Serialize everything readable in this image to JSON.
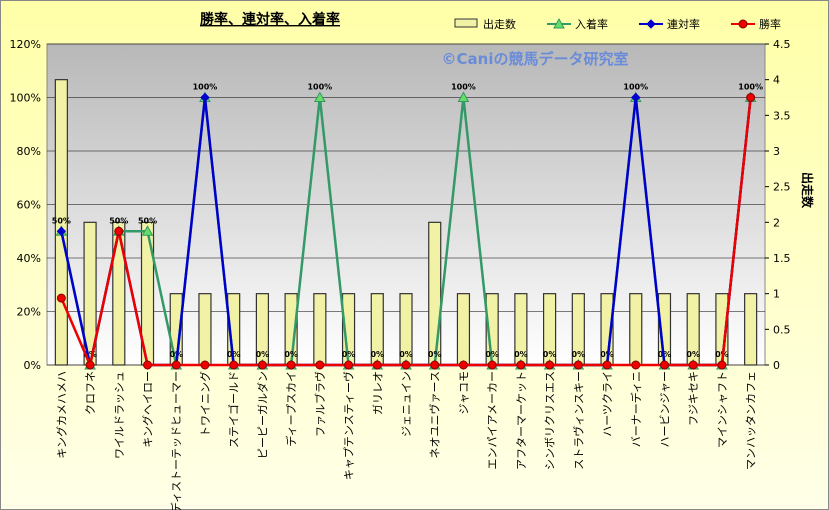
{
  "chart_data": {
    "type": "bar_line",
    "title": "勝率、連対率、入着率",
    "watermark": "©Caniの競馬データ研究室",
    "y2label": "出走数",
    "categories": [
      "キングカメハメハ",
      "クロフネ",
      "ワイルドラッシュ",
      "キングヘイロー",
      "ディストーテッドヒューマー",
      "トワイニング",
      "ステイゴールド",
      "ピーピーガルダン",
      "ディープスカイ",
      "ファルブラヴ",
      "キャプテンスティーヴ",
      "ガリレオ",
      "ジェニュイン",
      "ネオユニヴァース",
      "ジャコモ",
      "エンパイアメーカー",
      "アフターマーケット",
      "シンボリクリスエス",
      "ストラヴィンスキー",
      "ハーツクライ",
      "バーナーディニ",
      "ハービンジャー",
      "フジキセキ",
      "マインシャフト",
      "マンハッタンカフェ"
    ],
    "series": [
      {
        "name": "出走数",
        "type": "bar",
        "axis": "y2",
        "color": "#f2f2a6",
        "values": [
          4,
          2,
          2,
          2,
          1,
          1,
          1,
          1,
          1,
          1,
          1,
          1,
          1,
          2,
          1,
          1,
          1,
          1,
          1,
          1,
          1,
          1,
          1,
          1,
          1
        ]
      },
      {
        "name": "入着率",
        "type": "line",
        "marker": "triangle",
        "color": "#339966",
        "values": [
          50,
          0,
          50,
          50,
          0,
          100,
          0,
          0,
          0,
          100,
          0,
          0,
          0,
          0,
          100,
          0,
          0,
          0,
          0,
          0,
          100,
          0,
          0,
          0,
          100
        ],
        "value_labels": [
          "50%",
          "0%",
          "50%",
          "50%",
          "0%",
          "100%",
          "0%",
          "0%",
          "0%",
          "100%",
          "0%",
          "0%",
          "0%",
          "0%",
          "100%",
          "0%",
          "0%",
          "0%",
          "0%",
          "0%",
          "100%",
          "0%",
          "0%",
          "0%",
          "100%"
        ]
      },
      {
        "name": "連対率",
        "type": "line",
        "marker": "diamond",
        "color": "#0000cc",
        "values": [
          50,
          0,
          50,
          0,
          0,
          100,
          0,
          0,
          0,
          0,
          0,
          0,
          0,
          0,
          0,
          0,
          0,
          0,
          0,
          0,
          100,
          0,
          0,
          0,
          100
        ]
      },
      {
        "name": "勝率",
        "type": "line",
        "marker": "circle",
        "color": "#ee0000",
        "values": [
          25,
          0,
          50,
          0,
          0,
          0,
          0,
          0,
          0,
          0,
          0,
          0,
          0,
          0,
          0,
          0,
          0,
          0,
          0,
          0,
          0,
          0,
          0,
          0,
          100
        ]
      }
    ],
    "ylim": [
      0,
      120
    ],
    "yticks": [
      {
        "value": 0,
        "label": "0%"
      },
      {
        "value": 20,
        "label": "20%"
      },
      {
        "value": 40,
        "label": "40%"
      },
      {
        "value": 60,
        "label": "60%"
      },
      {
        "value": 80,
        "label": "80%"
      },
      {
        "value": 100,
        "label": "100%"
      },
      {
        "value": 120,
        "label": "120%"
      }
    ],
    "y2lim": [
      0,
      4.5
    ],
    "y2ticks": [
      0,
      0.5,
      1,
      1.5,
      2,
      2.5,
      3,
      3.5,
      4,
      4.5
    ],
    "grid": true,
    "legend": "top-right"
  }
}
